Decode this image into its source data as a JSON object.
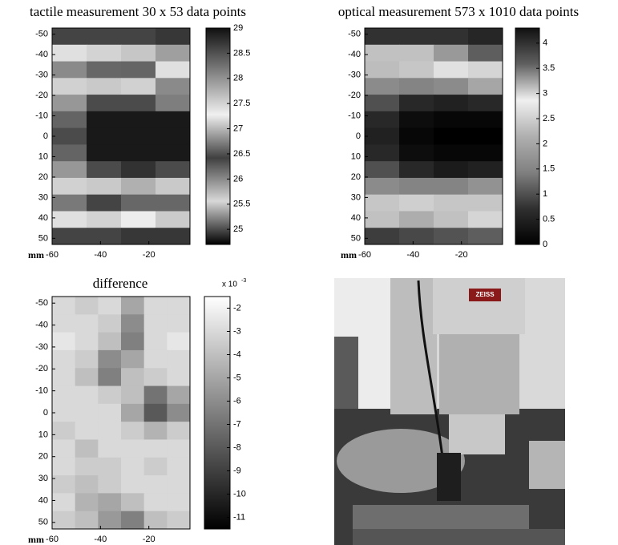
{
  "chart_data": [
    {
      "type": "heatmap",
      "title": "tactile measurement 30 x 53 data points",
      "xlabel": "mm",
      "xlim": [
        -60,
        -3
      ],
      "xticks": [
        -60,
        -40,
        -20
      ],
      "ylim": [
        -53,
        53
      ],
      "yreverse": true,
      "yticks": [
        -50,
        -40,
        -30,
        -20,
        -10,
        0,
        10,
        20,
        30,
        40,
        50
      ],
      "clim": [
        24.7,
        29
      ],
      "cticks": [
        25,
        25.5,
        26,
        26.5,
        27,
        27.5,
        28,
        28.5,
        29
      ],
      "colormap": [
        "#000000",
        "#d8d8d8",
        "#404040",
        "#f0f0f0",
        "#808080",
        "#101010"
      ],
      "grid": [
        [
          28.6,
          28.6,
          28.6,
          28.7
        ],
        [
          27.4,
          27.5,
          27.6,
          27.9
        ],
        [
          26.0,
          26.2,
          26.6,
          27.2
        ],
        [
          25.6,
          25.5,
          25.6,
          26.0
        ],
        [
          25.3,
          25.0,
          25.0,
          25.2
        ],
        [
          25.1,
          24.8,
          24.8,
          24.8
        ],
        [
          25.0,
          24.8,
          24.8,
          24.8
        ],
        [
          25.1,
          24.8,
          24.8,
          24.8
        ],
        [
          25.3,
          25.0,
          24.9,
          25.0
        ],
        [
          25.6,
          25.5,
          25.4,
          25.5
        ],
        [
          26.1,
          26.4,
          26.2,
          26.2
        ],
        [
          27.4,
          27.5,
          27.3,
          27.1
        ],
        [
          28.6,
          28.6,
          28.7,
          28.7
        ]
      ]
    },
    {
      "type": "heatmap",
      "title": "optical measurement 573 x 1010 data points",
      "xlabel": "mm",
      "xlim": [
        -60,
        -3
      ],
      "xticks": [
        -60,
        -40,
        -20
      ],
      "ylim": [
        -53,
        53
      ],
      "yreverse": true,
      "yticks": [
        -50,
        -40,
        -30,
        -20,
        -10,
        0,
        10,
        20,
        30,
        40,
        50
      ],
      "clim": [
        0,
        4.3
      ],
      "cticks": [
        0,
        0.5,
        1,
        1.5,
        2,
        2.5,
        3,
        3.5,
        4
      ],
      "colormap": [
        "#000000",
        "#303030",
        "#808080",
        "#b0b0b0",
        "#f0f0f0",
        "#606060",
        "#101010"
      ],
      "grid": [
        [
          4.0,
          4.0,
          4.0,
          4.1
        ],
        [
          3.1,
          3.1,
          3.3,
          3.6
        ],
        [
          2.3,
          2.4,
          2.7,
          3.0
        ],
        [
          1.6,
          1.5,
          1.6,
          2.0
        ],
        [
          1.0,
          0.6,
          0.5,
          0.6
        ],
        [
          0.6,
          0.2,
          0.1,
          0.1
        ],
        [
          0.5,
          0.1,
          0.0,
          0.0
        ],
        [
          0.6,
          0.2,
          0.1,
          0.1
        ],
        [
          1.0,
          0.6,
          0.4,
          0.5
        ],
        [
          1.6,
          1.5,
          1.5,
          1.7
        ],
        [
          2.4,
          2.5,
          2.4,
          2.4
        ],
        [
          3.1,
          3.2,
          3.1,
          3.0
        ],
        [
          3.9,
          3.8,
          3.7,
          3.6
        ]
      ]
    },
    {
      "type": "heatmap",
      "title": "difference",
      "xlabel": "mm",
      "multiplier": "x 10",
      "exponent": "-3",
      "xlim": [
        -60,
        -3
      ],
      "xticks": [
        -60,
        -40,
        -20
      ],
      "ylim": [
        -53,
        53
      ],
      "yreverse": true,
      "yticks": [
        -50,
        -40,
        -30,
        -20,
        -10,
        0,
        10,
        20,
        30,
        40,
        50
      ],
      "clim": [
        -11.5,
        -1.5
      ],
      "cticks": [
        -2,
        -3,
        -4,
        -5,
        -6,
        -7,
        -8,
        -9,
        -10,
        -11
      ],
      "colormap": [
        "#000000",
        "#ffffff"
      ],
      "grid": [
        [
          -3,
          -3.5,
          -3,
          -5,
          -3,
          -3
        ],
        [
          -3,
          -3,
          -3.5,
          -6,
          -3,
          -3
        ],
        [
          -2.5,
          -3,
          -4,
          -6.5,
          -3,
          -2.5
        ],
        [
          -3,
          -3.5,
          -6,
          -5,
          -3,
          -3
        ],
        [
          -3,
          -4,
          -6.5,
          -4,
          -3.5,
          -3
        ],
        [
          -3,
          -3,
          -3.5,
          -4,
          -7,
          -5
        ],
        [
          -3,
          -3,
          -3,
          -5,
          -8,
          -6
        ],
        [
          -3.5,
          -3,
          -3,
          -3.5,
          -4.5,
          -3.5
        ],
        [
          -3,
          -4,
          -3,
          -3,
          -3,
          -3
        ],
        [
          -3,
          -3.5,
          -3.5,
          -3,
          -3.5,
          -3
        ],
        [
          -3.5,
          -4,
          -3.5,
          -3,
          -3,
          -3
        ],
        [
          -3,
          -4.5,
          -5,
          -4,
          -3,
          -3
        ],
        [
          -3.5,
          -4,
          -5.5,
          -6.5,
          -4,
          -3.5
        ]
      ]
    }
  ],
  "photo": {
    "logo": "ZEISS"
  }
}
